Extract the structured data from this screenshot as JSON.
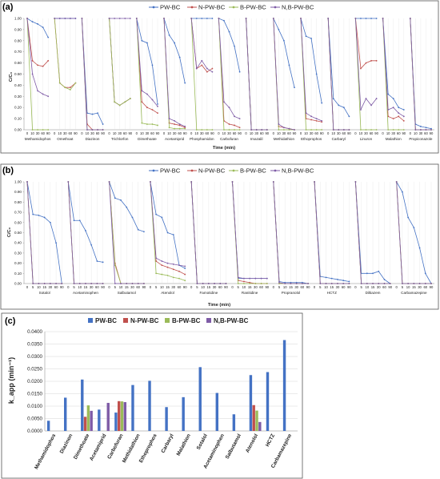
{
  "colors": {
    "pw": "#4472c4",
    "n": "#c0504d",
    "b": "#9bbb59",
    "nb": "#7e5ba6"
  },
  "chart_data": [
    {
      "panel": "(a)",
      "type": "line",
      "series_names": [
        "PW-BC",
        "N-PW-BC",
        "B-PW-BC",
        "N,B-PW-BC"
      ],
      "xlabel": "Time (min)",
      "ylabel": "C/C₀",
      "ylim": [
        0,
        1.0
      ],
      "yticks": [
        "0.00",
        "0.10",
        "0.20",
        "0.30",
        "0.40",
        "0.50",
        "0.60",
        "0.70",
        "0.80",
        "0.90",
        "1.00"
      ],
      "x_ticks": [
        "0",
        "10",
        "30",
        "60",
        "90"
      ],
      "groups": [
        {
          "name": "Methamidophos",
          "PW": [
            1,
            0.97,
            0.95,
            0.92,
            0.83
          ],
          "N": [
            1,
            0.62,
            0.58,
            0.57,
            0.62
          ],
          "B": [
            1,
            0,
            0,
            0,
            0
          ],
          "NB": [
            1,
            0.5,
            0.35,
            0.32,
            0.3
          ]
        },
        {
          "name": "Omethoat",
          "PW": [
            1,
            1,
            1,
            1,
            1
          ],
          "N": [
            1,
            0.42,
            0.38,
            0.38,
            0.42
          ],
          "B": [
            1,
            0.42,
            0.38,
            0.36,
            0.42
          ],
          "NB": [
            1,
            1,
            1,
            1,
            1
          ]
        },
        {
          "name": "Diazinon",
          "PW": [
            1,
            0.15,
            0.14,
            0.15,
            0.05
          ],
          "N": [
            1,
            0.05,
            0,
            0,
            0
          ],
          "B": [
            1,
            0,
            0,
            0,
            0
          ],
          "NB": [
            1,
            0,
            0,
            0,
            0
          ]
        },
        {
          "name": "Trichlorfon",
          "PW": [
            1,
            0.25,
            0.22,
            0.25,
            0.28
          ],
          "N": [
            1,
            0.25,
            0.22,
            0.25,
            0.28
          ],
          "B": [
            1,
            0.25,
            0.22,
            0.25,
            0.28
          ],
          "NB": [
            1,
            1,
            1,
            1,
            1
          ]
        },
        {
          "name": "Dimethoate",
          "PW": [
            1,
            0.8,
            0.78,
            0.58,
            0.23
          ],
          "N": [
            1,
            0.25,
            0.2,
            0.18,
            0.15
          ],
          "B": [
            1,
            0.06,
            0.05,
            0.05,
            0.04
          ],
          "NB": [
            1,
            0.35,
            0.32,
            0.27,
            0.21
          ]
        },
        {
          "name": "Acetamiprid",
          "PW": [
            1,
            0.85,
            0.78,
            0.65,
            0.42
          ],
          "N": [
            1,
            0.06,
            0.05,
            0.04,
            0.02
          ],
          "B": [
            1,
            0.02,
            0.01,
            0.01,
            0.01
          ],
          "NB": [
            1,
            0.1,
            0.08,
            0.05,
            0.03
          ]
        },
        {
          "name": "Phosphamidon",
          "PW": [
            1,
            1,
            1,
            1,
            1
          ],
          "N": [
            1,
            0.55,
            0.58,
            0.52,
            0.55
          ],
          "B": [
            1,
            0,
            0,
            0,
            0
          ],
          "NB": [
            1,
            0.55,
            0.62,
            0.55,
            0.52
          ]
        },
        {
          "name": "Carbofuran",
          "PW": [
            1,
            0.98,
            0.88,
            0.75,
            0.52
          ],
          "N": [
            1,
            0.08,
            0.05,
            0.04,
            0.02
          ],
          "B": [
            1,
            0,
            0,
            0,
            0
          ],
          "NB": [
            1,
            0.25,
            0.2,
            0.12,
            0.1
          ]
        },
        {
          "name": "Imazalil",
          "PW": [
            1,
            0,
            0,
            0,
            0
          ],
          "N": [
            1,
            0,
            0,
            0,
            0
          ],
          "B": [
            1,
            0,
            0,
            0,
            0
          ],
          "NB": [
            1,
            0,
            0,
            0,
            0
          ]
        },
        {
          "name": "Methidathion",
          "PW": [
            1,
            0.9,
            0.8,
            0.58,
            0.38
          ],
          "N": [
            1,
            0.03,
            0.02,
            0.01,
            0
          ],
          "B": [
            1,
            0,
            0,
            0,
            0
          ],
          "NB": [
            1,
            0.05,
            0.02,
            0.01,
            0
          ]
        },
        {
          "name": "Ethoprophos",
          "PW": [
            1,
            0.84,
            0.82,
            0.5,
            0.24
          ],
          "N": [
            1,
            0.1,
            0.09,
            0.08,
            0.07
          ],
          "B": [
            1,
            0,
            0,
            0,
            0
          ],
          "NB": [
            1,
            0.15,
            0.12,
            0.1,
            0.08
          ]
        },
        {
          "name": "Carbaryl",
          "PW": [
            1,
            0.28,
            0.22,
            0.2,
            0.12
          ],
          "N": [
            1,
            0,
            0,
            0,
            0
          ],
          "B": [
            1,
            0,
            0,
            0,
            0
          ],
          "NB": [
            1,
            0,
            0,
            0,
            0
          ]
        },
        {
          "name": "Linuron",
          "PW": [
            1,
            1,
            1,
            1,
            1
          ],
          "N": [
            1,
            0.55,
            0.6,
            0.62,
            0.62
          ],
          "B": [
            1,
            0,
            0,
            0,
            0
          ],
          "NB": [
            1,
            0.18,
            0.28,
            0.22,
            0.28
          ]
        },
        {
          "name": "Malathion",
          "PW": [
            1,
            0.32,
            0.28,
            0.2,
            0.18
          ],
          "N": [
            1,
            0.12,
            0.1,
            0.12,
            0.08
          ],
          "B": [
            1,
            0,
            0,
            0,
            0
          ],
          "NB": [
            1,
            0.18,
            0.2,
            0.15,
            0.12
          ]
        },
        {
          "name": "Propiconazole",
          "PW": [
            1,
            0.05,
            0.03,
            0.02,
            0.01
          ],
          "N": [
            1,
            0,
            0,
            0,
            0
          ],
          "B": [
            1,
            0,
            0,
            0,
            0
          ],
          "NB": [
            1,
            0,
            0,
            0,
            0
          ]
        }
      ]
    },
    {
      "panel": "(b)",
      "type": "line",
      "series_names": [
        "PW-BC",
        "N-PW-BC",
        "B-PW-BC",
        "N,B-PW-BC"
      ],
      "xlabel": "Time (min)",
      "ylabel": "C/C₀",
      "ylim": [
        0,
        1.0
      ],
      "yticks": [
        "0.00",
        "0.10",
        "0.20",
        "0.30",
        "0.40",
        "0.50",
        "0.60",
        "0.70",
        "0.80",
        "0.90",
        "1.00"
      ],
      "x_ticks": [
        "0",
        "5",
        "10",
        "15",
        "30",
        "60",
        "90"
      ],
      "groups": [
        {
          "name": "Sotalol",
          "PW": [
            1,
            0.68,
            0.67,
            0.65,
            0.6,
            0.4,
            0
          ],
          "N": [
            1,
            0,
            0,
            0,
            0,
            0,
            0
          ],
          "B": [
            1,
            0,
            0,
            0,
            0,
            0,
            0
          ],
          "NB": [
            1,
            0,
            0,
            0,
            0,
            0,
            0
          ]
        },
        {
          "name": "Acetaminophen",
          "PW": [
            1,
            0.62,
            0.62,
            0.52,
            0.38,
            0.22,
            0.21
          ],
          "N": [
            1,
            0,
            0,
            0,
            0,
            0,
            0
          ],
          "B": [
            1,
            0,
            0,
            0,
            0,
            0,
            0
          ],
          "NB": [
            1,
            0,
            0,
            0,
            0,
            0,
            0
          ]
        },
        {
          "name": "Salbutamol",
          "PW": [
            1,
            0.84,
            0.82,
            0.75,
            0.65,
            0.53,
            0.51
          ],
          "N": [
            1,
            0.2,
            0,
            0,
            0,
            0,
            0
          ],
          "B": [
            1,
            0.18,
            0,
            0,
            0,
            0,
            0
          ],
          "NB": [
            1,
            0,
            0,
            0,
            0,
            0,
            0
          ]
        },
        {
          "name": "Atenolol",
          "PW": [
            1,
            0.68,
            0.65,
            0.5,
            0.48,
            0.18,
            0.15
          ],
          "N": [
            1,
            0.22,
            0.18,
            0.16,
            0.14,
            0.12,
            0.09
          ],
          "B": [
            1,
            0.1,
            0.09,
            0.08,
            0.06,
            0.05,
            0.03
          ],
          "NB": [
            1,
            0.25,
            0.22,
            0.2,
            0.19,
            0.18,
            0.17
          ]
        },
        {
          "name": "Famotidine",
          "PW": [
            1,
            0,
            0,
            0,
            0,
            0,
            0
          ],
          "N": [
            1,
            0,
            0,
            0,
            0,
            0,
            0
          ],
          "B": [
            1,
            0,
            0,
            0,
            0,
            0,
            0
          ],
          "NB": [
            1,
            0,
            0,
            0,
            0,
            0,
            0
          ]
        },
        {
          "name": "Ranitidine",
          "PW": [
            1,
            0.05,
            0.05,
            0.05,
            0.05,
            0.05,
            0.05
          ],
          "N": [
            1,
            0.03,
            0.02,
            0.01,
            0,
            0,
            0
          ],
          "B": [
            1,
            0,
            0,
            0,
            0,
            0,
            0
          ],
          "NB": [
            1,
            0.06,
            0.05,
            0.05,
            0.05,
            0.05,
            0.05
          ]
        },
        {
          "name": "Propranolol",
          "PW": [
            1,
            0.02,
            0.01,
            0.01,
            0.01,
            0.01,
            0
          ],
          "N": [
            1,
            0,
            0,
            0,
            0,
            0,
            0
          ],
          "B": [
            1,
            0,
            0,
            0,
            0,
            0,
            0
          ],
          "NB": [
            1,
            0.01,
            0,
            0,
            0,
            0,
            0
          ]
        },
        {
          "name": "HCTZ",
          "PW": [
            1,
            0.07,
            0.06,
            0.05,
            0.04,
            0.03,
            0.02
          ],
          "N": [
            1,
            0,
            0,
            0,
            0,
            0,
            0
          ],
          "B": [
            1,
            0,
            0,
            0,
            0,
            0,
            0
          ],
          "NB": [
            1,
            0,
            0,
            0,
            0,
            0,
            0
          ]
        },
        {
          "name": "Diltiazem",
          "PW": [
            1,
            0.1,
            0.1,
            0.1,
            0.12,
            0.04,
            0
          ],
          "N": [
            1,
            0,
            0,
            0,
            0,
            0,
            0
          ],
          "B": [
            1,
            0,
            0,
            0,
            0,
            0,
            0
          ],
          "NB": [
            1,
            0,
            0,
            0,
            0,
            0,
            0
          ]
        },
        {
          "name": "Carbamazepine",
          "PW": [
            1,
            0.9,
            0.65,
            0.55,
            0.35,
            0.1,
            0
          ],
          "N": [
            1,
            0,
            0,
            0,
            0,
            0,
            0
          ],
          "B": [
            1,
            0,
            0,
            0,
            0,
            0,
            0
          ],
          "NB": [
            1,
            0,
            0,
            0,
            0,
            0,
            0
          ]
        }
      ]
    },
    {
      "panel": "(c)",
      "type": "bar",
      "series_names": [
        "PW-BC",
        "N-PW-BC",
        "B-PW-BC",
        "N,B-PW-BC"
      ],
      "ylabel": "k_app (min⁻¹)",
      "ylim": [
        0,
        0.04
      ],
      "yticks": [
        "0.0000",
        "0.0050",
        "0.0100",
        "0.0150",
        "0.0200",
        "0.0250",
        "0.0300",
        "0.0350",
        "0.0400"
      ],
      "categories": [
        "Methamidophos",
        "Diazinon",
        "Dimethoate",
        "Acetamiprid",
        "Carbofuran",
        "Methidathion",
        "Ethoprophos",
        "Carbaryl",
        "Malathion",
        "Sotalol",
        "Acetaminophen",
        "Salbutamol",
        "Atenolol",
        "HCTZ",
        "Carbamazepine"
      ],
      "series": [
        {
          "name": "PW-BC",
          "values": [
            0.0041,
            0.0134,
            0.0207,
            0.0086,
            0.0074,
            0.0185,
            0.0202,
            0.0096,
            0.0136,
            0.0257,
            0.0153,
            0.0067,
            0.0225,
            0.0237,
            0.0366
          ]
        },
        {
          "name": "N-PW-BC",
          "values": [
            null,
            null,
            0.0057,
            null,
            0.012,
            null,
            null,
            null,
            null,
            null,
            null,
            null,
            0.0104,
            null,
            null
          ]
        },
        {
          "name": "B-PW-BC",
          "values": [
            null,
            null,
            0.0103,
            null,
            0.0119,
            null,
            null,
            null,
            null,
            null,
            null,
            null,
            0.0082,
            null,
            null
          ]
        },
        {
          "name": "N,B-PW-BC",
          "values": [
            null,
            null,
            0.0081,
            0.0113,
            0.0116,
            null,
            null,
            null,
            null,
            null,
            null,
            null,
            0.0036,
            null,
            null
          ]
        }
      ]
    }
  ]
}
